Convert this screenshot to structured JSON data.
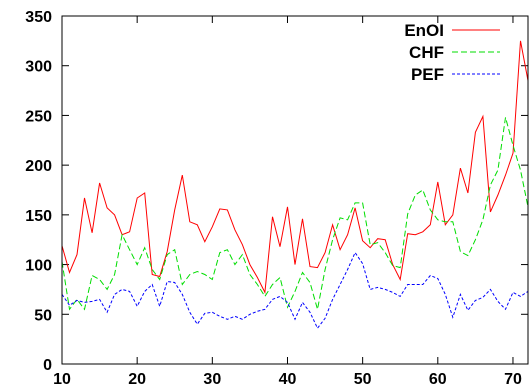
{
  "chart_data": {
    "type": "line",
    "title": "",
    "xlabel": "",
    "ylabel": "",
    "xlim": [
      10,
      72
    ],
    "ylim": [
      0,
      350
    ],
    "grid": false,
    "legend_position": "top-right",
    "x_ticks": [
      10,
      20,
      30,
      40,
      50,
      60,
      70
    ],
    "y_ticks": [
      0,
      50,
      100,
      150,
      200,
      250,
      300,
      350
    ],
    "x": [
      10,
      11,
      12,
      13,
      14,
      15,
      16,
      17,
      18,
      19,
      20,
      21,
      22,
      23,
      24,
      25,
      26,
      27,
      28,
      29,
      30,
      31,
      32,
      33,
      34,
      35,
      36,
      37,
      38,
      39,
      40,
      41,
      42,
      43,
      44,
      45,
      46,
      47,
      48,
      49,
      50,
      51,
      52,
      53,
      54,
      55,
      56,
      57,
      58,
      59,
      60,
      61,
      62,
      63,
      64,
      65,
      66,
      67,
      68,
      69,
      70,
      71,
      72
    ],
    "series": [
      {
        "name": "EnOI",
        "color": "#ff0000",
        "dash": "",
        "values": [
          119,
          92,
          110,
          167,
          132,
          182,
          157,
          150,
          130,
          133,
          167,
          172,
          90,
          88,
          113,
          155,
          190,
          143,
          140,
          123,
          138,
          156,
          155,
          135,
          120,
          100,
          87,
          72,
          148,
          118,
          158,
          100,
          146,
          98,
          97,
          112,
          140,
          115,
          130,
          157,
          124,
          117,
          126,
          125,
          100,
          85,
          131,
          130,
          133,
          140,
          183,
          140,
          150,
          197,
          172,
          233,
          249,
          153,
          170,
          190,
          212,
          325,
          285
        ]
      },
      {
        "name": "CHF",
        "color": "#00dd00",
        "dash": "6 3",
        "values": [
          103,
          55,
          65,
          55,
          89,
          85,
          75,
          90,
          130,
          115,
          100,
          117,
          95,
          85,
          110,
          115,
          80,
          90,
          93,
          90,
          85,
          112,
          115,
          100,
          110,
          90,
          80,
          68,
          80,
          87,
          57,
          73,
          92,
          82,
          55,
          95,
          125,
          147,
          145,
          162,
          162,
          120,
          122,
          112,
          99,
          97,
          151,
          170,
          175,
          155,
          145,
          143,
          143,
          113,
          109,
          125,
          145,
          180,
          195,
          248,
          220,
          195,
          158
        ]
      },
      {
        "name": "PEF",
        "color": "#0000ff",
        "dash": "3 2",
        "values": [
          70,
          59,
          64,
          62,
          63,
          65,
          52,
          70,
          75,
          73,
          58,
          73,
          80,
          58,
          83,
          82,
          70,
          52,
          40,
          51,
          52,
          48,
          45,
          48,
          45,
          50,
          53,
          55,
          65,
          68,
          62,
          45,
          62,
          52,
          36,
          46,
          65,
          80,
          95,
          112,
          101,
          75,
          77,
          75,
          72,
          68,
          80,
          80,
          80,
          89,
          86,
          70,
          47,
          70,
          54,
          64,
          67,
          75,
          63,
          55,
          72,
          68,
          73
        ]
      }
    ]
  }
}
